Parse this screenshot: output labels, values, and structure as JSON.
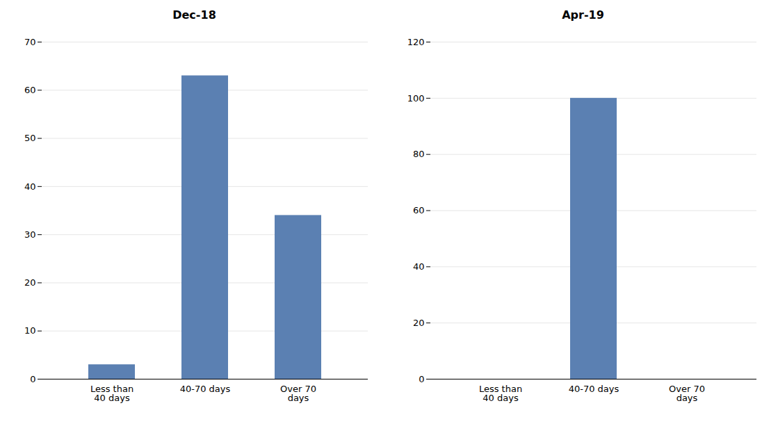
{
  "chart_data": [
    {
      "type": "bar",
      "title": "Dec-18",
      "categories": [
        "Less than\n40 days",
        "40-70 days",
        "Over 70\ndays"
      ],
      "values": [
        3,
        63,
        34
      ],
      "color": "#5B80B2",
      "ylim": [
        0,
        70
      ],
      "yticks": [
        0,
        10,
        20,
        30,
        40,
        50,
        60,
        70
      ],
      "grid": true
    },
    {
      "type": "bar",
      "title": "Apr-19",
      "categories": [
        "Less than\n40 days",
        "40-70 days",
        "Over 70\ndays"
      ],
      "values": [
        0,
        100,
        0
      ],
      "color": "#5B80B2",
      "ylim": [
        0,
        120
      ],
      "yticks": [
        0,
        20,
        40,
        60,
        80,
        100,
        120
      ],
      "grid": true
    }
  ]
}
